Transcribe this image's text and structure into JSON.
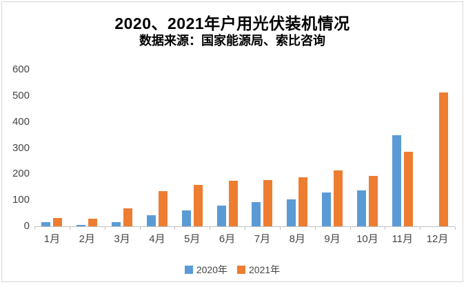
{
  "title": "2020、2021年户用光伏装机情况",
  "subtitle": "数据来源：国家能源局、索比咨询",
  "colors": {
    "series_2020": "#5B9BD5",
    "series_2021": "#ED7D31",
    "axis": "#bfbfbf",
    "tick_text": "#444444"
  },
  "chart_data": {
    "type": "bar",
    "title": "2020、2021年户用光伏装机情况",
    "subtitle": "数据来源：国家能源局、索比咨询",
    "categories": [
      "1月",
      "2月",
      "3月",
      "4月",
      "5月",
      "6月",
      "7月",
      "8月",
      "9月",
      "10月",
      "11月",
      "12月"
    ],
    "series": [
      {
        "name": "2020年",
        "color": "#5B9BD5",
        "values": [
          15,
          6,
          15,
          42,
          62,
          78,
          92,
          104,
          129,
          138,
          350,
          0
        ]
      },
      {
        "name": "2021年",
        "color": "#ED7D31",
        "values": [
          33,
          29,
          70,
          135,
          158,
          175,
          178,
          187,
          215,
          193,
          286,
          512
        ]
      }
    ],
    "xlabel": "",
    "ylabel": "",
    "ylim": [
      0,
      600
    ],
    "ytick_step": 100,
    "grid": false,
    "legend_position": "bottom"
  }
}
